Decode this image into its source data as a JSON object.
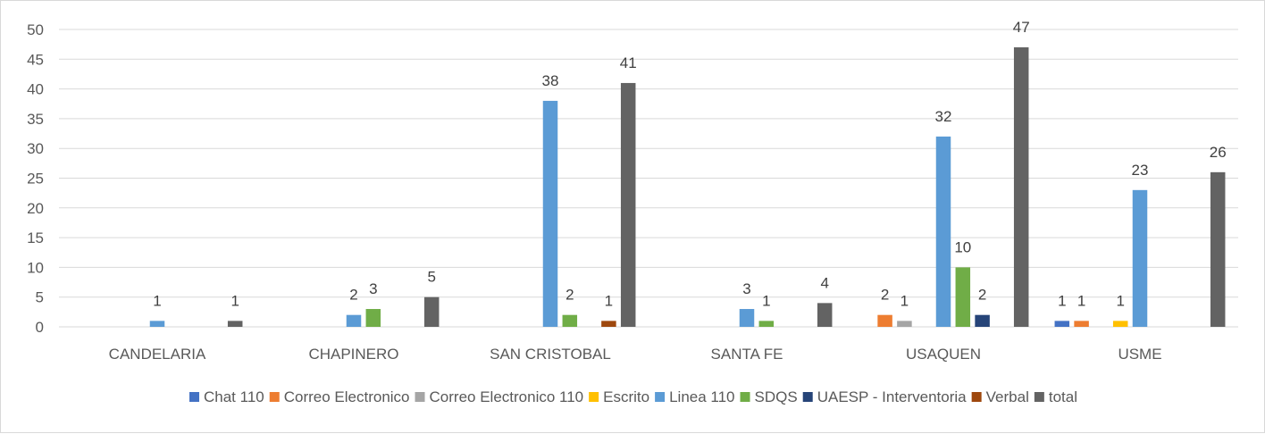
{
  "chart_data": {
    "type": "bar",
    "title": "",
    "xlabel": "",
    "ylabel": "",
    "ylim": [
      0,
      50
    ],
    "yticks": [
      0,
      5,
      10,
      15,
      20,
      25,
      30,
      35,
      40,
      45,
      50
    ],
    "grid": true,
    "legend_position": "bottom",
    "categories": [
      "CANDELARIA",
      "CHAPINERO",
      "SAN CRISTOBAL",
      "SANTA FE",
      "USAQUEN",
      "USME"
    ],
    "series": [
      {
        "name": "Chat 110",
        "color": "#4472c4",
        "values": [
          null,
          null,
          null,
          null,
          null,
          1
        ]
      },
      {
        "name": "Correo Electronico",
        "color": "#ed7d31",
        "values": [
          null,
          null,
          null,
          null,
          2,
          1
        ]
      },
      {
        "name": "Correo Electronico 110",
        "color": "#a5a5a5",
        "values": [
          null,
          null,
          null,
          null,
          1,
          null
        ]
      },
      {
        "name": "Escrito",
        "color": "#ffc000",
        "values": [
          null,
          null,
          null,
          null,
          null,
          1
        ]
      },
      {
        "name": "Linea 110",
        "color": "#5b9bd5",
        "values": [
          1,
          2,
          38,
          3,
          32,
          23
        ]
      },
      {
        "name": "SDQS",
        "color": "#70ad47",
        "values": [
          null,
          3,
          2,
          1,
          10,
          null
        ]
      },
      {
        "name": "UAESP - Interventoria",
        "color": "#264478",
        "values": [
          null,
          null,
          null,
          null,
          2,
          null
        ]
      },
      {
        "name": "Verbal",
        "color": "#9e480e",
        "values": [
          null,
          null,
          1,
          null,
          null,
          null
        ]
      },
      {
        "name": "total",
        "color": "#636363",
        "values": [
          1,
          5,
          41,
          4,
          47,
          26
        ]
      }
    ]
  }
}
